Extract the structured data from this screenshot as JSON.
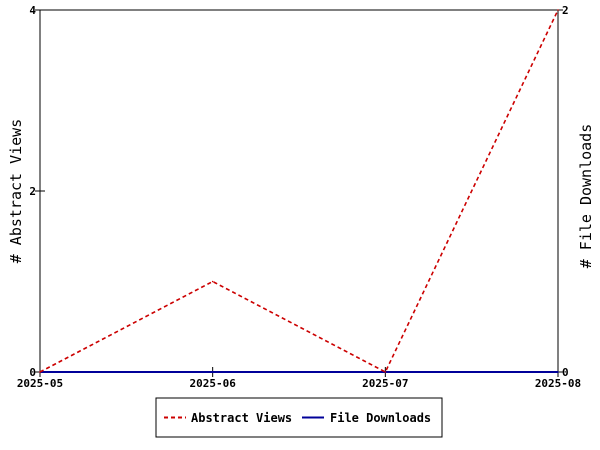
{
  "chart_data": {
    "type": "line",
    "categories": [
      "2025-05",
      "2025-06",
      "2025-07",
      "2025-08"
    ],
    "y_left": {
      "label": "# Abstract Views",
      "ylim": [
        0,
        4
      ],
      "ticks": [
        "0",
        "2",
        "4"
      ]
    },
    "y_right": {
      "label": "# File Downloads",
      "ylim": [
        0,
        2
      ],
      "ticks": [
        "0",
        "2"
      ]
    },
    "series": [
      {
        "name": "Abstract Views",
        "axis": "left",
        "values": [
          0,
          1,
          0,
          4
        ],
        "color": "#cc0000",
        "style": "dashed"
      },
      {
        "name": "File Downloads",
        "axis": "right",
        "values": [
          0,
          0,
          0,
          0
        ],
        "color": "#000099",
        "style": "solid"
      }
    ],
    "grid": false,
    "legend_position": "bottom-center"
  }
}
